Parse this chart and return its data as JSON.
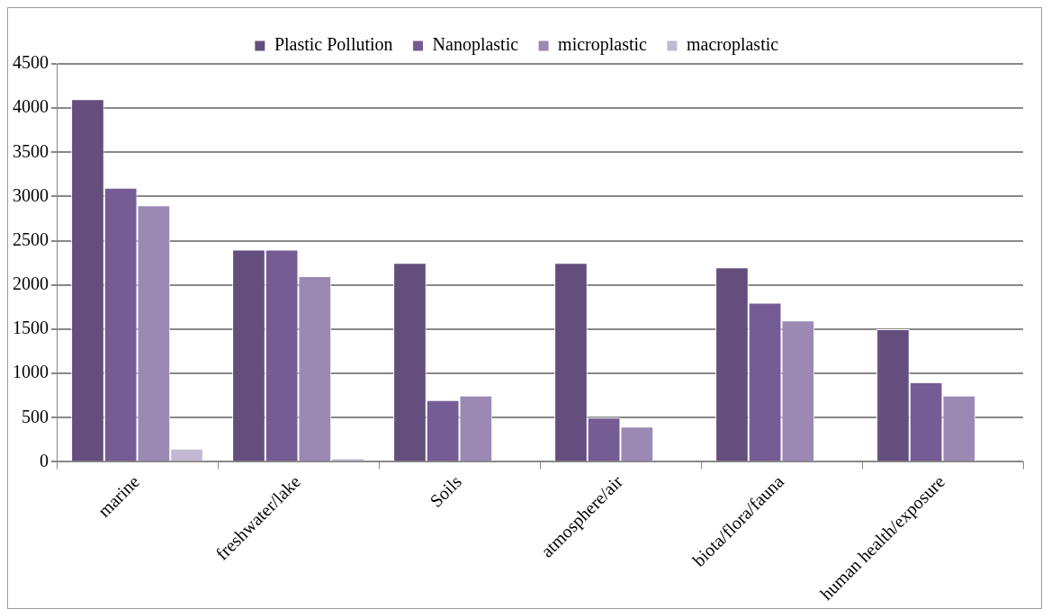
{
  "chart_data": {
    "type": "bar",
    "categories": [
      "marine",
      "freshwater/lake",
      "Soils",
      "atmosphere/air",
      "biota/flora/fauna",
      "human health/exposure"
    ],
    "series": [
      {
        "name": "Plastic Pollution",
        "color": "#634e7d",
        "values": [
          4100,
          2400,
          2250,
          2250,
          2200,
          1500
        ]
      },
      {
        "name": "Nanoplastic",
        "color": "#765c95",
        "values": [
          3100,
          2400,
          700,
          500,
          1800,
          900
        ]
      },
      {
        "name": "microplastic",
        "color": "#9b89b3",
        "values": [
          2900,
          2100,
          750,
          400,
          1600,
          750
        ]
      },
      {
        "name": "macroplastic",
        "color": "#c3b8d3",
        "values": [
          150,
          40,
          0,
          0,
          0,
          0
        ]
      }
    ],
    "ylim": [
      0,
      4500
    ],
    "yticks": [
      0,
      500,
      1000,
      1500,
      2000,
      2500,
      3000,
      3500,
      4000,
      4500
    ],
    "grid": "y",
    "legend": "top"
  }
}
